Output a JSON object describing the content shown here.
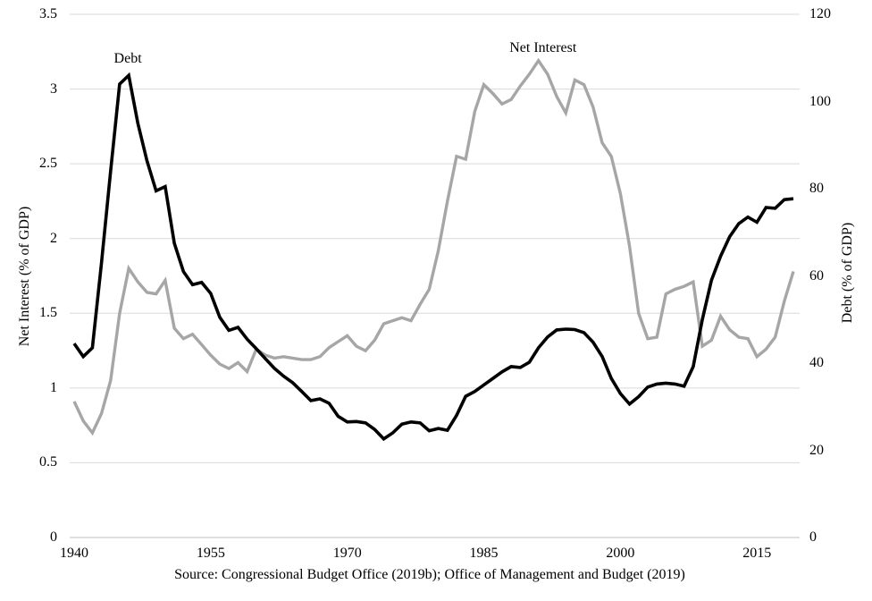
{
  "chart_data": {
    "type": "line",
    "title": "",
    "x": [
      1940,
      1941,
      1942,
      1943,
      1944,
      1945,
      1946,
      1947,
      1948,
      1949,
      1950,
      1951,
      1952,
      1953,
      1954,
      1955,
      1956,
      1957,
      1958,
      1959,
      1960,
      1961,
      1962,
      1963,
      1964,
      1965,
      1966,
      1967,
      1968,
      1969,
      1970,
      1971,
      1972,
      1973,
      1974,
      1975,
      1976,
      1977,
      1978,
      1979,
      1980,
      1981,
      1982,
      1983,
      1984,
      1985,
      1986,
      1987,
      1988,
      1989,
      1990,
      1991,
      1992,
      1993,
      1994,
      1995,
      1996,
      1997,
      1998,
      1999,
      2000,
      2001,
      2002,
      2003,
      2004,
      2005,
      2006,
      2007,
      2008,
      2009,
      2010,
      2011,
      2012,
      2013,
      2014,
      2015,
      2016,
      2017,
      2018,
      2019
    ],
    "series": [
      {
        "name": "Debt",
        "axis": "right",
        "color": "#000000",
        "stroke_width": 3.6,
        "values": [
          44.5,
          41.5,
          43.5,
          63,
          84,
          104,
          106,
          95,
          86.4,
          79.5,
          80.5,
          67.5,
          61,
          58,
          58.5,
          56,
          50.5,
          47.5,
          48.2,
          45.5,
          43.3,
          41,
          38.8,
          37,
          35.5,
          33.5,
          31.4,
          31.8,
          30.8,
          27.8,
          26.5,
          26.6,
          26.3,
          24.8,
          22.6,
          24,
          26,
          26.5,
          26.3,
          24.5,
          25,
          24.6,
          28,
          32.4,
          33.5,
          35,
          36.5,
          38,
          39.2,
          39,
          40.2,
          43.5,
          46,
          47.6,
          47.8,
          47.7,
          47,
          44.8,
          41.5,
          36.5,
          33,
          30.6,
          32.3,
          34.5,
          35.2,
          35.4,
          35.2,
          34.7,
          39.2,
          50,
          59,
          64.5,
          69,
          72,
          73.5,
          72.3,
          75.7,
          75.5,
          77.5,
          77.7
        ]
      },
      {
        "name": "Net Interest",
        "axis": "left",
        "color": "#a6a6a6",
        "stroke_width": 3.4,
        "values": [
          0.91,
          0.78,
          0.7,
          0.83,
          1.05,
          1.5,
          1.8,
          1.71,
          1.64,
          1.63,
          1.72,
          1.4,
          1.33,
          1.36,
          1.29,
          1.22,
          1.16,
          1.13,
          1.17,
          1.11,
          1.26,
          1.22,
          1.2,
          1.21,
          1.2,
          1.19,
          1.19,
          1.21,
          1.27,
          1.31,
          1.35,
          1.28,
          1.25,
          1.32,
          1.43,
          1.45,
          1.47,
          1.45,
          1.56,
          1.66,
          1.92,
          2.25,
          2.55,
          2.53,
          2.85,
          3.03,
          2.97,
          2.9,
          2.93,
          3.02,
          3.1,
          3.19,
          3.1,
          2.95,
          2.84,
          3.06,
          3.03,
          2.88,
          2.64,
          2.55,
          2.3,
          1.95,
          1.5,
          1.33,
          1.34,
          1.63,
          1.66,
          1.68,
          1.71,
          1.28,
          1.32,
          1.48,
          1.39,
          1.34,
          1.33,
          1.21,
          1.26,
          1.34,
          1.58,
          1.78
        ]
      }
    ],
    "left_axis": {
      "label": "Net Interest (% of GDP)",
      "min": 0,
      "max": 3.5,
      "ticks": [
        3.5,
        3,
        2.5,
        2,
        1.5,
        1,
        0.5,
        0
      ],
      "tick_labels": [
        "3.5",
        "3",
        "2.5",
        "2",
        "1.5",
        "1",
        "0.5",
        "0"
      ]
    },
    "right_axis": {
      "label": "Debt (% of GDP)",
      "min": 0,
      "max": 120,
      "ticks": [
        120,
        100,
        80,
        60,
        40,
        20,
        0
      ],
      "tick_labels": [
        "120",
        "100",
        "80",
        "60",
        "40",
        "20",
        "0"
      ]
    },
    "x_axis": {
      "range": [
        1940,
        2019
      ],
      "ticks": [
        1940,
        1955,
        1970,
        1985,
        2000,
        2015
      ],
      "tick_labels": [
        "1940",
        "1955",
        "1970",
        "1985",
        "2000",
        "2015"
      ]
    },
    "annotations": [
      {
        "text": "Debt",
        "anchor": {
          "year": 1945.9,
          "value": 3.2,
          "axis": "left"
        }
      },
      {
        "text": "Net Interest",
        "anchor": {
          "year": 1991.5,
          "value": 3.27,
          "axis": "left"
        }
      }
    ],
    "grid": true,
    "gridline_color": "#d9d9d9",
    "baseline_color": "#bfbfbf",
    "background": "#ffffff",
    "source_note": "Source: Congressional Budget Office (2019b); Office of Management and Budget (2019)"
  }
}
